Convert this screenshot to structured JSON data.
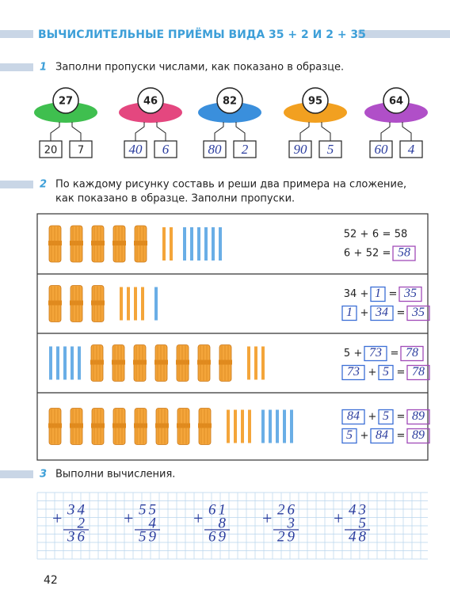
{
  "header": {
    "title": "ВЫЧИСЛИТЕЛЬНЫЕ ПРИЁМЫ ВИДА 35 + 2 И 2 + 35"
  },
  "task1": {
    "number": "1",
    "text": "Заполни пропуски числами, как показано в образце.",
    "items": [
      {
        "total": "27",
        "parts": [
          "20",
          "7"
        ],
        "color": "#3fbf4f",
        "handwritten": false
      },
      {
        "total": "46",
        "parts": [
          "40",
          "6"
        ],
        "color": "#e4477f",
        "handwritten": true
      },
      {
        "total": "82",
        "parts": [
          "80",
          "2"
        ],
        "color": "#3a8fdc",
        "handwritten": true
      },
      {
        "total": "95",
        "parts": [
          "90",
          "5"
        ],
        "color": "#f2a020",
        "handwritten": true
      },
      {
        "total": "64",
        "parts": [
          "60",
          "4"
        ],
        "color": "#b04fc8",
        "handwritten": true
      }
    ]
  },
  "task2": {
    "number": "2",
    "lines": [
      "По каждому рисунку составь и реши два примера на сложение,",
      "как показано в образце. Заполни пропуски."
    ],
    "rows": [
      {
        "equations": [
          [
            "52",
            "+",
            "6",
            "=",
            "58"
          ],
          [
            "6",
            "+",
            "52",
            "=",
            {
              "value": "58",
              "box": "result"
            }
          ]
        ]
      },
      {
        "equations": [
          [
            "34",
            "+",
            {
              "value": "1",
              "box": "operand"
            },
            "=",
            {
              "value": "35",
              "box": "result"
            }
          ],
          [
            {
              "value": "1",
              "box": "operand"
            },
            "+",
            {
              "value": "34",
              "box": "operand"
            },
            "=",
            {
              "value": "35",
              "box": "result"
            }
          ]
        ]
      },
      {
        "equations": [
          [
            "5",
            "+",
            {
              "value": "73",
              "box": "operand"
            },
            "=",
            {
              "value": "78",
              "box": "result"
            }
          ],
          [
            {
              "value": "73",
              "box": "operand"
            },
            "+",
            {
              "value": "5",
              "box": "operand"
            },
            "=",
            {
              "value": "78",
              "box": "result"
            }
          ]
        ]
      },
      {
        "equations": [
          [
            {
              "value": "84",
              "box": "operand"
            },
            "+",
            {
              "value": "5",
              "box": "operand"
            },
            "=",
            {
              "value": "89",
              "box": "result"
            }
          ],
          [
            {
              "value": "5",
              "box": "operand"
            },
            "+",
            {
              "value": "84",
              "box": "operand"
            },
            "=",
            {
              "value": "89",
              "box": "result"
            }
          ]
        ]
      }
    ]
  },
  "task3": {
    "number": "3",
    "text": "Выполни вычисления.",
    "sign": "+",
    "columns": [
      [
        "34",
        "2",
        "36"
      ],
      [
        "55",
        "4",
        "59"
      ],
      [
        "61",
        "8",
        "69"
      ],
      [
        "26",
        "3",
        "29"
      ],
      [
        "43",
        "5",
        "48"
      ]
    ]
  },
  "page_number": "42"
}
